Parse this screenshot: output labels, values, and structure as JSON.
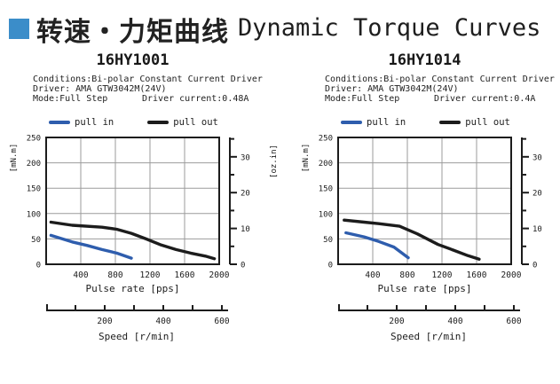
{
  "header": {
    "zh_title": "转速・力矩曲线",
    "en_title": "Dynamic Torque Curves",
    "accent_color": "#3b8dc9"
  },
  "colors": {
    "pull_in": "#2e5dad",
    "pull_out": "#1c1c1c",
    "grid": "#9b9b9b",
    "axis": "#1c1c1c"
  },
  "chart_data": [
    {
      "type": "line",
      "title": "16HY1001",
      "conditions": "Conditions:Bi-polar Constant Current Driver",
      "driver": "Driver: AMA GTW3042M(24V)",
      "mode": "Mode:Full Step",
      "driver_current": "Driver current:0.48A",
      "xlabel": "Pulse rate [pps]",
      "ylabel_left": "[mN.m]",
      "ylabel_right": "[oz.in]",
      "speed_label": "Speed [r/min]",
      "xlim": [
        0,
        2000
      ],
      "ylim_left": [
        0,
        250
      ],
      "x_ticks": [
        400,
        800,
        1200,
        1600,
        2000
      ],
      "y_ticks_left": [
        0,
        50,
        100,
        150,
        200,
        250
      ],
      "y_ticks_right": [
        0,
        10,
        20,
        30
      ],
      "speed_ticks": [
        100,
        200,
        300,
        400,
        500,
        600
      ],
      "speed_tick_labels": [
        200,
        400,
        600
      ],
      "speed_max": 600,
      "grid": true,
      "legend_position": "top",
      "series": [
        {
          "name": "pull in",
          "color": "#2e5dad",
          "points": [
            [
              55,
              57
            ],
            [
              300,
              44
            ],
            [
              475,
              37
            ],
            [
              645,
              29
            ],
            [
              815,
              22
            ],
            [
              985,
              12
            ]
          ]
        },
        {
          "name": "pull out",
          "color": "#1c1c1c",
          "points": [
            [
              55,
              83
            ],
            [
              300,
              77
            ],
            [
              645,
              73
            ],
            [
              815,
              69
            ],
            [
              985,
              61
            ],
            [
              1155,
              50
            ],
            [
              1330,
              38
            ],
            [
              1500,
              29
            ],
            [
              1670,
              22
            ],
            [
              1840,
              16
            ],
            [
              1945,
              11
            ]
          ]
        }
      ]
    },
    {
      "type": "line",
      "title": "16HY1014",
      "conditions": "Conditions:Bi-polar Constant Current Driver",
      "driver": "Driver: AMA GTW3042M(24V)",
      "mode": "Mode:Full Step",
      "driver_current": "Driver current:0.4A",
      "xlabel": "Pulse rate [pps]",
      "ylabel_left": "[mN.m]",
      "ylabel_right": "[oz.in]",
      "speed_label": "Speed [r/min]",
      "xlim": [
        0,
        2000
      ],
      "ylim_left": [
        0,
        250
      ],
      "x_ticks": [
        400,
        800,
        1200,
        1600,
        2000
      ],
      "y_ticks_left": [
        0,
        50,
        100,
        150,
        200,
        250
      ],
      "y_ticks_right": [
        0,
        10,
        20,
        30
      ],
      "speed_ticks": [
        100,
        200,
        300,
        400,
        500,
        600
      ],
      "speed_tick_labels": [
        200,
        400,
        600
      ],
      "speed_max": 600,
      "grid": true,
      "legend_position": "top",
      "series": [
        {
          "name": "pull in",
          "color": "#2e5dad",
          "points": [
            [
              90,
              62
            ],
            [
              300,
              54
            ],
            [
              470,
              45
            ],
            [
              645,
              34
            ],
            [
              810,
              13
            ]
          ]
        },
        {
          "name": "pull out",
          "color": "#1c1c1c",
          "points": [
            [
              70,
              87
            ],
            [
              300,
              83
            ],
            [
              470,
              80
            ],
            [
              710,
              75
            ],
            [
              915,
              60
            ],
            [
              1155,
              39
            ],
            [
              1330,
              28
            ],
            [
              1500,
              17
            ],
            [
              1630,
              10
            ]
          ]
        }
      ]
    }
  ]
}
